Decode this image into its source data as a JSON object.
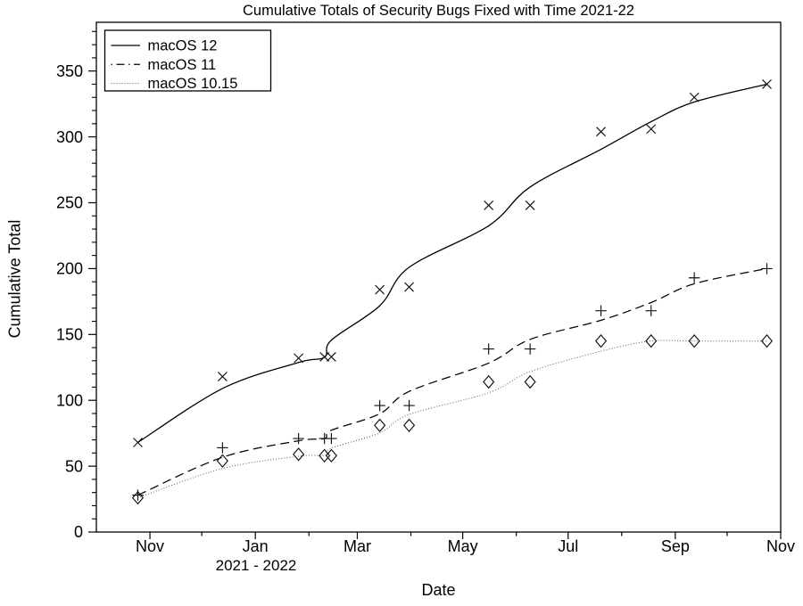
{
  "chart_data": {
    "type": "line",
    "title": "Cumulative Totals of Security Bugs Fixed with Time 2021-22",
    "xlabel": "Date",
    "ylabel": "Cumulative Total",
    "x_axis_note": "2021 - 2022",
    "x_range": [
      "2021-10-01",
      "2022-11-01"
    ],
    "ylim": [
      0,
      387
    ],
    "y_major_ticks": [
      0,
      50,
      100,
      150,
      200,
      250,
      300,
      350
    ],
    "y_minor_step": 10,
    "grid": "off",
    "legend_position": "top-left",
    "x_ticks": [
      {
        "date": "2021-11-01",
        "label": "Nov"
      },
      {
        "date": "2021-12-01",
        "label": ""
      },
      {
        "date": "2022-01-01",
        "label": "Jan"
      },
      {
        "date": "2022-02-01",
        "label": ""
      },
      {
        "date": "2022-03-01",
        "label": "Mar"
      },
      {
        "date": "2022-04-01",
        "label": ""
      },
      {
        "date": "2022-05-01",
        "label": "May"
      },
      {
        "date": "2022-06-01",
        "label": ""
      },
      {
        "date": "2022-07-01",
        "label": "Jul"
      },
      {
        "date": "2022-08-01",
        "label": ""
      },
      {
        "date": "2022-09-01",
        "label": "Sep"
      },
      {
        "date": "2022-10-01",
        "label": ""
      },
      {
        "date": "2022-11-01",
        "label": "Nov"
      }
    ],
    "dates": [
      "2021-10-25",
      "2021-12-13",
      "2022-01-26",
      "2022-02-10",
      "2022-02-14",
      "2022-03-14",
      "2022-03-31",
      "2022-05-16",
      "2022-06-09",
      "2022-07-20",
      "2022-08-18",
      "2022-09-12",
      "2022-10-24"
    ],
    "series": [
      {
        "name": "macOS 12",
        "marker": "x",
        "line_style": "solid",
        "color": "#000000",
        "values": [
          68,
          118,
          132,
          133,
          133,
          184,
          186,
          248,
          248,
          304,
          306,
          330,
          340
        ]
      },
      {
        "name": "macOS 11",
        "marker": "plus",
        "line_style": "dash-dot",
        "color": "#000000",
        "values": [
          28,
          64,
          71,
          71,
          71,
          96,
          96,
          139,
          139,
          168,
          168,
          193,
          200
        ]
      },
      {
        "name": "macOS 10.15",
        "marker": "diamond",
        "line_style": "dotted",
        "color": "#4a4a4a",
        "values": [
          26,
          54,
          59,
          58,
          58,
          81,
          81,
          114,
          114,
          145,
          145,
          145,
          145
        ]
      }
    ]
  }
}
